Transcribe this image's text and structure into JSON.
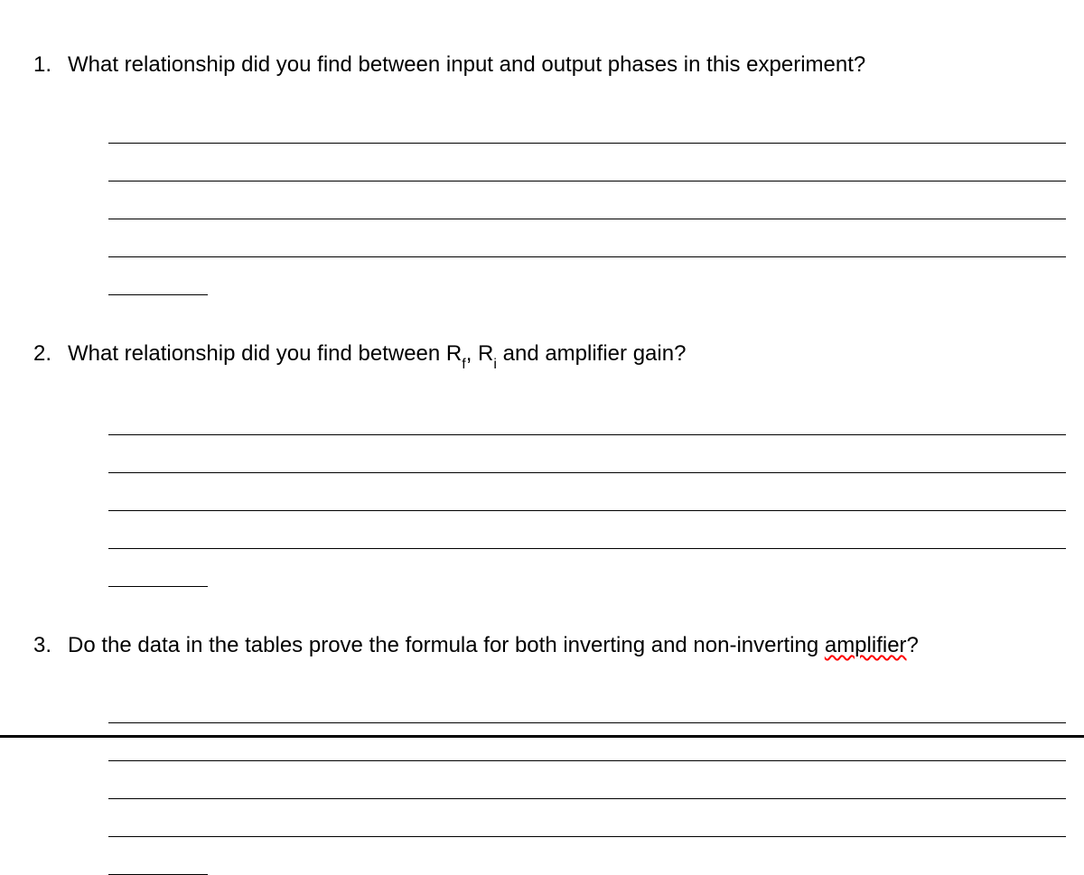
{
  "questions": [
    {
      "number": "1.",
      "text_before": "What relationship did you find between input and output phases in this experiment?",
      "text_rf": "",
      "text_mid": "",
      "text_ri": "",
      "text_after": "",
      "has_sub": false,
      "spell_word": "",
      "long_lines": 4,
      "short_lines": 1
    },
    {
      "number": "2.",
      "text_before": "What relationship did you find between R",
      "text_rf": "f",
      "text_mid": ", R",
      "text_ri": "i",
      "text_after": " and amplifier gain?",
      "has_sub": true,
      "spell_word": "",
      "long_lines": 4,
      "short_lines": 1
    },
    {
      "number": "3.",
      "text_before": "Do the data in the tables prove the formula for both inverting and non-inverting ",
      "text_rf": "",
      "text_mid": "",
      "text_ri": "",
      "text_after": "?",
      "has_sub": false,
      "spell_word": "amplifier",
      "long_lines": 4,
      "short_lines": 1
    }
  ],
  "styling": {
    "background_color": "#ffffff",
    "text_color": "#000000",
    "line_color": "#000000",
    "spellcheck_color": "#ff0000",
    "font_size_main": 24,
    "font_size_sub": 16,
    "line_spacing": 42,
    "short_line_width": 110,
    "number_col_width": 55,
    "answer_indent": 100
  }
}
